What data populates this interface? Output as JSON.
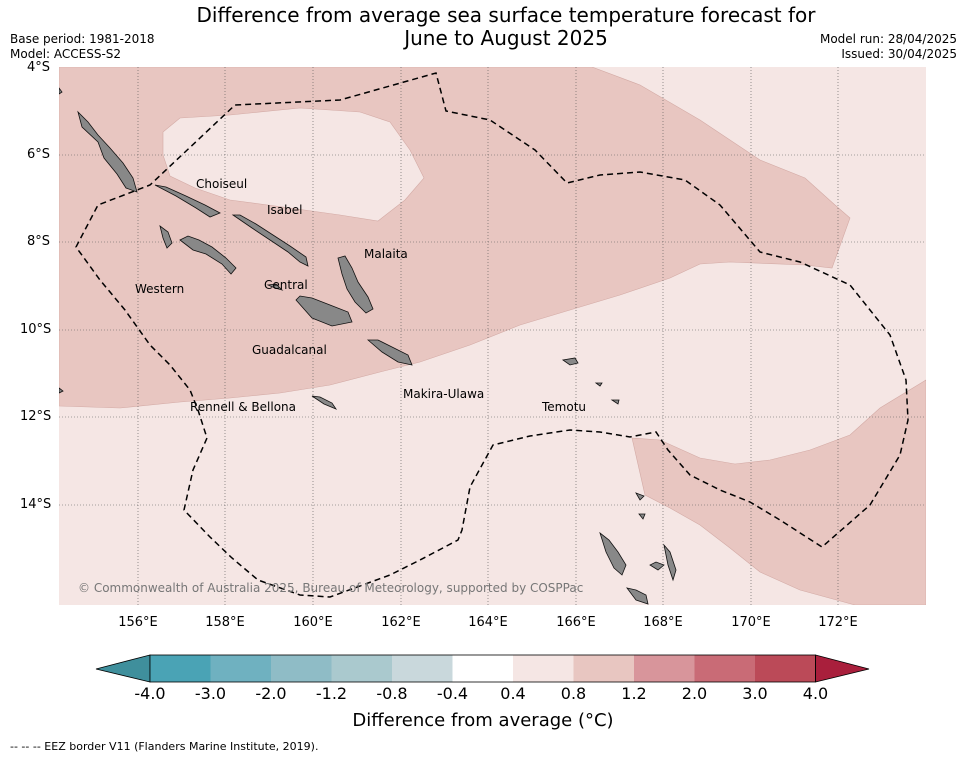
{
  "title_line1": "Difference from average sea surface temperature forecast for",
  "title_line2": "June to August 2025",
  "base_period": "Base period: 1981-2018",
  "model": "Model: ACCESS-S2",
  "model_run": "Model run: 28/04/2025",
  "issued": "Issued: 30/04/2025",
  "lat_labels": [
    "4°S",
    "6°S",
    "8°S",
    "10°S",
    "12°S",
    "14°S"
  ],
  "lon_labels": [
    "156°E",
    "158°E",
    "160°E",
    "162°E",
    "164°E",
    "166°E",
    "168°E",
    "170°E",
    "172°E"
  ],
  "regions": {
    "choiseul": "Choiseul",
    "isabel": "Isabel",
    "malaita": "Malaita",
    "western": "Western",
    "central": "Central",
    "guadalcanal": "Guadalcanal",
    "makira_ulawa": "Makira-Ulawa",
    "rennell_bellona": "Rennell & Bellona",
    "temotu": "Temotu"
  },
  "copyright": "© Commonwealth of Australia 2025, Bureau of Meteorology, supported by COSPPac",
  "colorbar": {
    "title": "Difference from average (°C)",
    "labels": [
      "-4.0",
      "-3.0",
      "-2.0",
      "-1.2",
      "-0.8",
      "-0.4",
      "0.4",
      "0.8",
      "1.2",
      "2.0",
      "3.0",
      "4.0"
    ],
    "colors": [
      "#3f8f9c",
      "#4aa3b5",
      "#6fb1c0",
      "#8fbcc6",
      "#aac9ce",
      "#c9d8dc",
      "#ffffff",
      "#f5e6e4",
      "#e8c6c1",
      "#d8959b",
      "#c96b76",
      "#bb4a58",
      "#a91f3c"
    ]
  },
  "legend_note": "--  --  -- EEZ border V11 (Flanders Marine Institute, 2019).",
  "palette": {
    "anom_04_08": "#f5e6e4",
    "anom_08_12": "#e8c6c1",
    "land": "#888888"
  }
}
